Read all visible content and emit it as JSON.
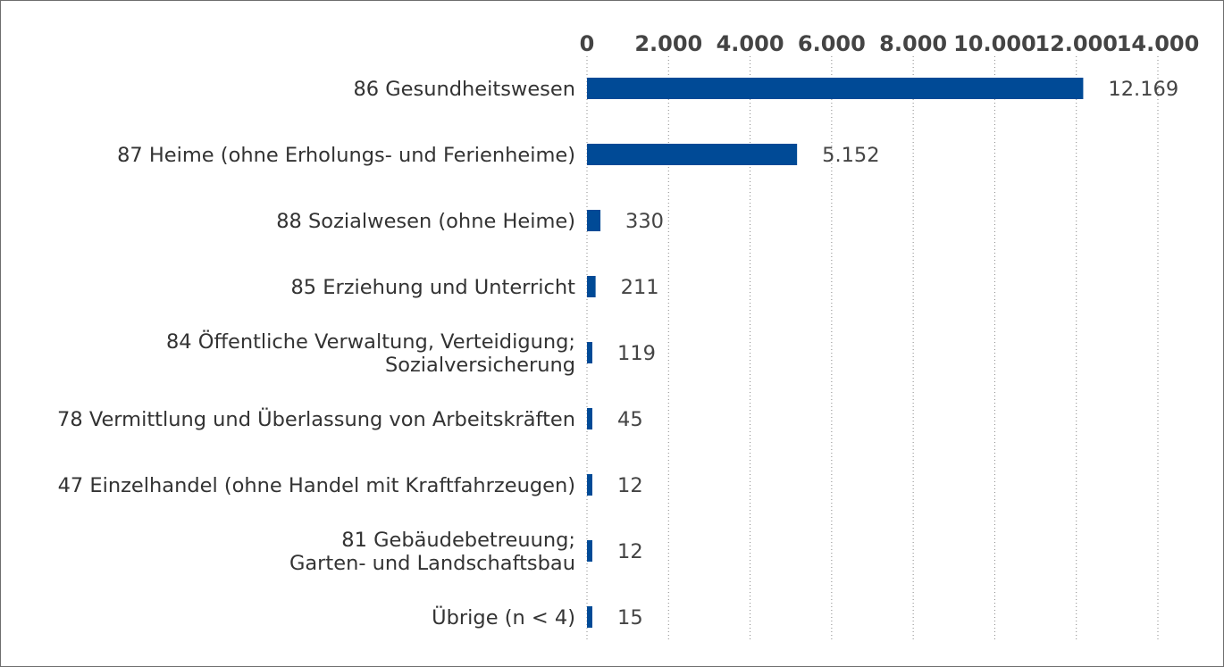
{
  "chart_data": {
    "type": "bar",
    "orientation": "horizontal",
    "title": "",
    "xlabel": "",
    "ylabel": "",
    "xlim": [
      0,
      14000
    ],
    "x_ticks": [
      0,
      2000,
      4000,
      6000,
      8000,
      10000,
      12000,
      14000
    ],
    "x_tick_labels": [
      "0",
      "2.000",
      "4.000",
      "6.000",
      "8.000",
      "10.000",
      "12.000",
      "14.000"
    ],
    "axis_position": "top",
    "grid": true,
    "bar_color": "#004a96",
    "categories": [
      [
        "86 Gesundheitswesen"
      ],
      [
        "87 Heime (ohne Erholungs- und Ferienheime)"
      ],
      [
        "88 Sozialwesen (ohne Heime)"
      ],
      [
        "85 Erziehung und Unterricht"
      ],
      [
        "84 Öffentliche Verwaltung, Verteidigung;",
        "Sozialversicherung"
      ],
      [
        "78 Vermittlung und Überlassung von Arbeitskräften"
      ],
      [
        "47 Einzelhandel (ohne Handel mit Kraftfahrzeugen)"
      ],
      [
        "81 Gebäudebetreuung;",
        "Garten- und Landschaftsbau"
      ],
      [
        "Übrige (n < 4)"
      ]
    ],
    "values": [
      12169,
      5152,
      330,
      211,
      119,
      45,
      12,
      12,
      15
    ],
    "value_labels": [
      "12.169",
      "5.152",
      "330",
      "211",
      "119",
      "45",
      "12",
      "12",
      "15"
    ]
  }
}
